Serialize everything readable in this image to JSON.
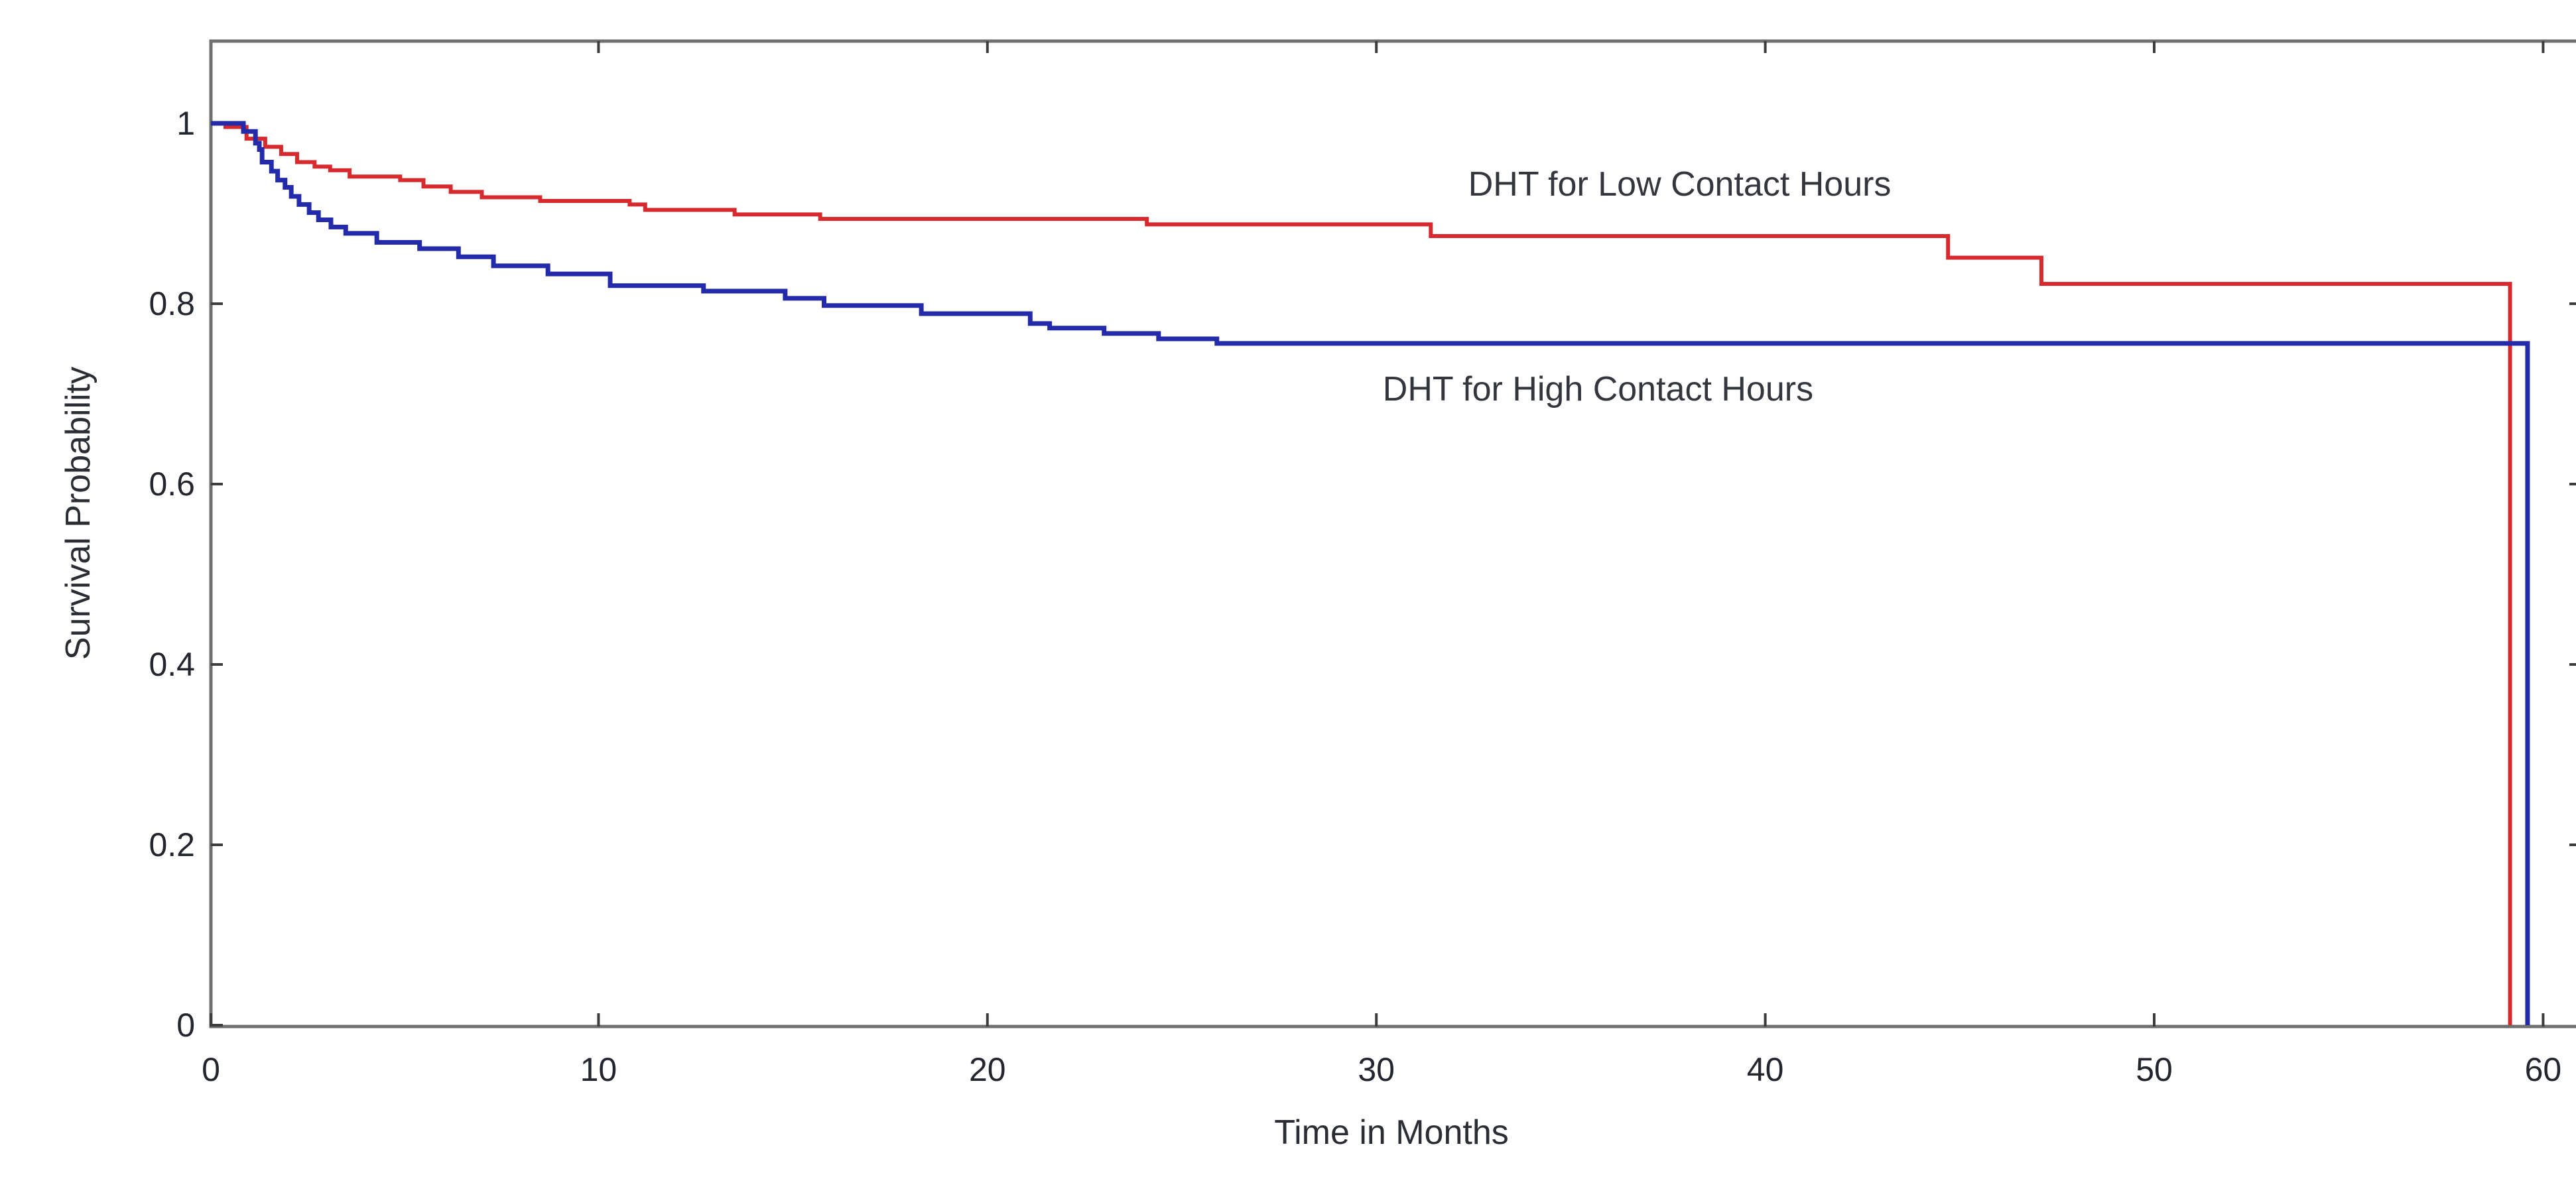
{
  "chart_data": {
    "type": "line",
    "subtype": "kaplan-meier-step",
    "title": "",
    "xlabel": "Time in Months",
    "ylabel": "Survival Probability",
    "xlim": [
      0,
      61
    ],
    "ylim": [
      0,
      1.09
    ],
    "grid": false,
    "x_ticks": [
      0,
      10,
      20,
      30,
      40,
      50,
      60
    ],
    "y_ticks": [
      1,
      0.8,
      0.6,
      0.4,
      0.2,
      0
    ],
    "y_tick_labels": [
      "1",
      "0.8",
      "0.6",
      "0.4",
      "0.2",
      "0"
    ],
    "frame_color": "#6f6f6f",
    "tick_color": "#3d3d3d",
    "legend_position": "inline-annotations",
    "series": [
      {
        "name": "DHT for Low Contact Hours",
        "color": "#d62a2e",
        "line_width": 6,
        "drop_to_zero_at": 59.15,
        "steps": [
          [
            0,
            1.0
          ],
          [
            0.41,
            0.996
          ],
          [
            0.95,
            0.983
          ],
          [
            1.43,
            0.974
          ],
          [
            1.84,
            0.966
          ],
          [
            2.25,
            0.957
          ],
          [
            2.7,
            0.952
          ],
          [
            3.1,
            0.948
          ],
          [
            3.6,
            0.941
          ],
          [
            4.9,
            0.937
          ],
          [
            5.5,
            0.93
          ],
          [
            6.2,
            0.924
          ],
          [
            7.0,
            0.918
          ],
          [
            8.5,
            0.914
          ],
          [
            10.8,
            0.91
          ],
          [
            11.2,
            0.904
          ],
          [
            13.5,
            0.899
          ],
          [
            15.7,
            0.894
          ],
          [
            24.1,
            0.888
          ],
          [
            31.4,
            0.875
          ],
          [
            44.7,
            0.851
          ],
          [
            47.1,
            0.822
          ]
        ]
      },
      {
        "name": "DHT for High Contact Hours",
        "color": "#242bab",
        "line_width": 7,
        "drop_to_zero_at": 59.6,
        "steps": [
          [
            0,
            1.0
          ],
          [
            0.87,
            0.991
          ],
          [
            1.18,
            0.978
          ],
          [
            1.28,
            0.971
          ],
          [
            1.35,
            0.957
          ],
          [
            1.59,
            0.947
          ],
          [
            1.75,
            0.937
          ],
          [
            1.94,
            0.929
          ],
          [
            2.1,
            0.919
          ],
          [
            2.3,
            0.91
          ],
          [
            2.56,
            0.901
          ],
          [
            2.8,
            0.893
          ],
          [
            3.12,
            0.885
          ],
          [
            3.5,
            0.878
          ],
          [
            4.3,
            0.868
          ],
          [
            5.4,
            0.861
          ],
          [
            6.4,
            0.852
          ],
          [
            7.3,
            0.842
          ],
          [
            8.7,
            0.833
          ],
          [
            10.3,
            0.82
          ],
          [
            12.7,
            0.814
          ],
          [
            14.8,
            0.806
          ],
          [
            15.8,
            0.798
          ],
          [
            18.3,
            0.789
          ],
          [
            21.1,
            0.778
          ],
          [
            21.6,
            0.773
          ],
          [
            23.0,
            0.767
          ],
          [
            24.4,
            0.761
          ],
          [
            25.9,
            0.756
          ]
        ]
      }
    ],
    "annotations": [
      {
        "series": 0,
        "text": "DHT for Low Contact Hours",
        "month": 37.8,
        "value": 0.932
      },
      {
        "series": 1,
        "text": "DHT for High Contact Hours",
        "month": 35.7,
        "value": 0.705
      }
    ]
  }
}
